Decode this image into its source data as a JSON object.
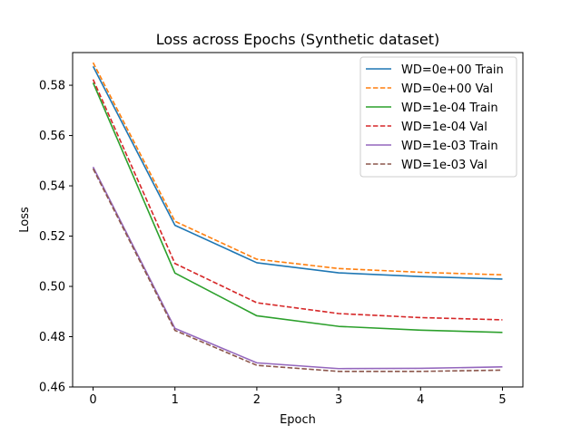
{
  "chart_data": {
    "type": "line",
    "title": "Loss across Epochs (Synthetic dataset)",
    "xlabel": "Epoch",
    "ylabel": "Loss",
    "x": [
      0,
      1,
      2,
      3,
      4,
      5
    ],
    "xlim": [
      -0.25,
      5.25
    ],
    "ylim": [
      0.46,
      0.593
    ],
    "xticks": [
      0,
      1,
      2,
      3,
      4,
      5
    ],
    "yticks": [
      0.46,
      0.48,
      0.5,
      0.52,
      0.54,
      0.56,
      0.58
    ],
    "ytick_labels": [
      "0.46",
      "0.48",
      "0.50",
      "0.52",
      "0.54",
      "0.56",
      "0.58"
    ],
    "grid": false,
    "legend_position": "top-right",
    "series": [
      {
        "name": "WD=0e+00 Train",
        "color": "#1f77b4",
        "dash": "solid",
        "values": [
          0.5875,
          0.5243,
          0.5094,
          0.5054,
          0.5039,
          0.5029
        ]
      },
      {
        "name": "WD=0e+00 Val",
        "color": "#ff7f0e",
        "dash": "dashed",
        "values": [
          0.589,
          0.5259,
          0.5108,
          0.5071,
          0.5056,
          0.5046
        ]
      },
      {
        "name": "WD=1e-04 Train",
        "color": "#2ca02c",
        "dash": "solid",
        "values": [
          0.581,
          0.5053,
          0.4883,
          0.4841,
          0.4826,
          0.4817
        ]
      },
      {
        "name": "WD=1e-04 Val",
        "color": "#d62728",
        "dash": "dashed",
        "values": [
          0.5823,
          0.5091,
          0.4935,
          0.4892,
          0.4876,
          0.4867
        ]
      },
      {
        "name": "WD=1e-03 Train",
        "color": "#9467bd",
        "dash": "solid",
        "values": [
          0.5475,
          0.4833,
          0.4696,
          0.4673,
          0.4674,
          0.468
        ]
      },
      {
        "name": "WD=1e-03 Val",
        "color": "#8c564b",
        "dash": "dashed",
        "values": [
          0.5468,
          0.4825,
          0.4686,
          0.4662,
          0.4662,
          0.4667
        ]
      }
    ]
  }
}
